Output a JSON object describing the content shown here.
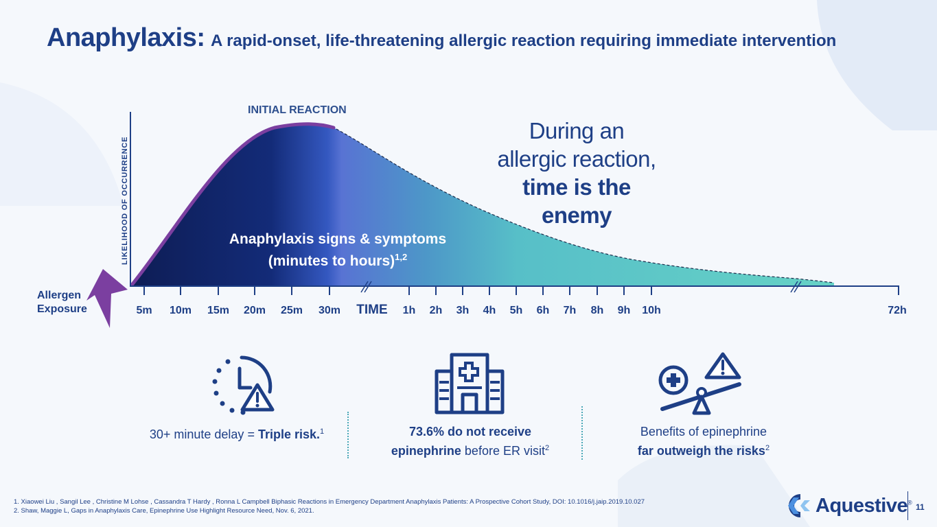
{
  "title": {
    "main": "Anaphylaxis:",
    "sub": "A rapid-onset, life-threatening allergic reaction requiring immediate intervention"
  },
  "diagram": {
    "initial_reaction": "INITIAL REACTION",
    "y_axis_label": "LIKELIHOOD OF OCCURRENCE",
    "curve_label_line1": "Anaphylaxis signs & symptoms",
    "curve_label_line2": "(minutes to hours)",
    "curve_label_sup": "1,2",
    "allergen_line1": "Allergen",
    "allergen_line2": "Exposure",
    "axis_label": "TIME",
    "tick_labels": [
      "5m",
      "10m",
      "15m",
      "20m",
      "25m",
      "30m",
      "1h",
      "2h",
      "3h",
      "4h",
      "5h",
      "6h",
      "7h",
      "8h",
      "9h",
      "10h",
      "72h"
    ]
  },
  "callout": {
    "line1": "During an",
    "line2": "allergic reaction,",
    "line3": "time is the",
    "line4": "enemy"
  },
  "stats": [
    {
      "pre": "30+ minute delay =",
      "bold": "Triple risk.",
      "sup": "1"
    },
    {
      "bold1": "73.6% do not receive",
      "bold2": "epinephrine",
      "rest": "before ER visit",
      "sup": "2"
    },
    {
      "line1": "Benefits of epinephrine",
      "bold": "far outweigh the risks",
      "sup": "2"
    }
  ],
  "icons": [
    "clock-warning-icon",
    "hospital-icon",
    "balance-scale-icon"
  ],
  "footnotes": [
    "1. Xiaowei Liu , Sangil Lee , Christine M Lohse , Cassandra T Hardy , Ronna L Campbell  Biphasic Reactions in Emergency Department Anaphylaxis Patients: A Prospective Cohort Study, DOI: 10.1016/j.jaip.2019.10.027",
    "2. Shaw, Maggie L, Gaps in Anaphylaxis Care, Epinephrine Use Highlight Resource Need, Nov. 6, 2021."
  ],
  "logo": {
    "name": "Aquestive",
    "mark": "®"
  },
  "page_number": "11",
  "colors": {
    "navy": "#1e3f86",
    "purple": "#7b3fa0",
    "teal": "#5fcfc6",
    "dark": "#10205e",
    "light_blue_shape": "#dde7f5"
  }
}
